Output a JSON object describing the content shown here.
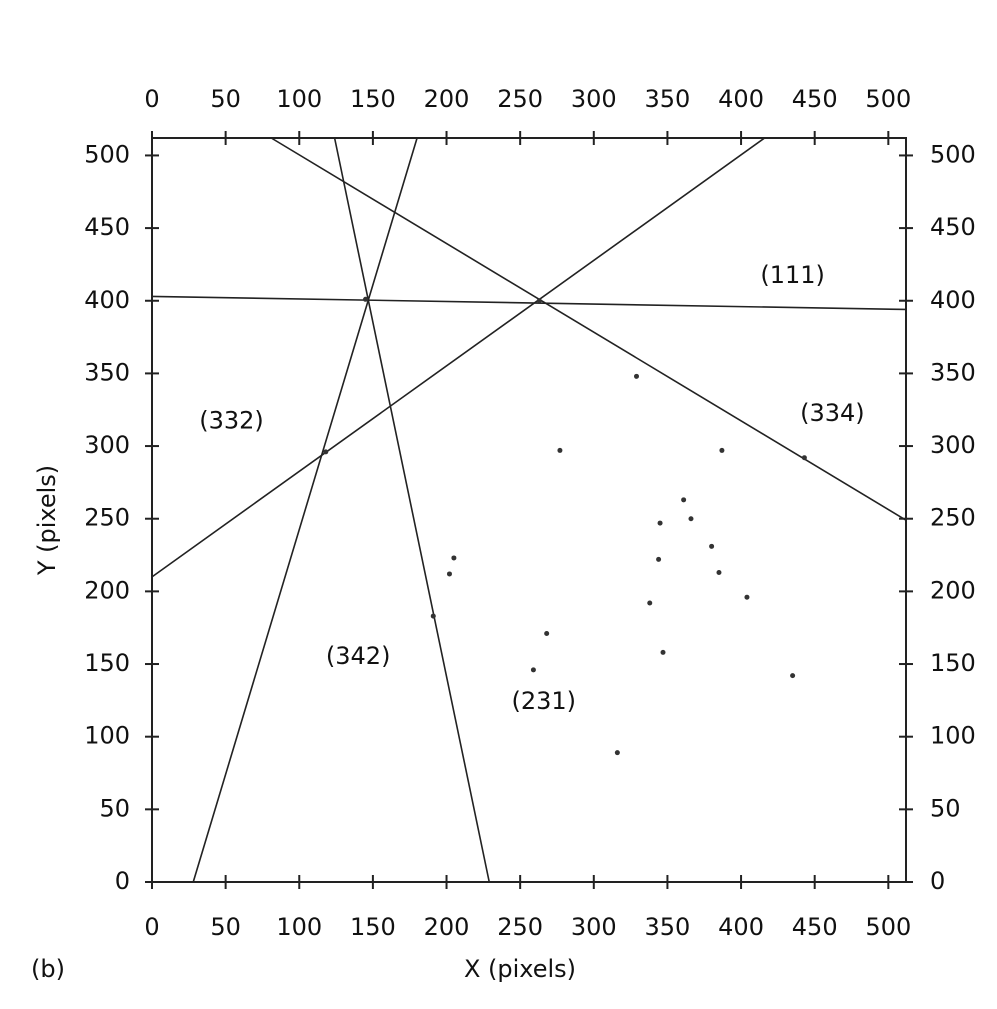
{
  "chart_data": {
    "type": "line",
    "xlabel": "X (pixels)",
    "ylabel": "Y (pixels)",
    "panel_label": "(b)",
    "xlim": [
      0,
      512
    ],
    "ylim": [
      0,
      512
    ],
    "xticks": [
      0,
      50,
      100,
      150,
      200,
      250,
      300,
      350,
      400,
      450,
      500
    ],
    "yticks": [
      0,
      50,
      100,
      150,
      200,
      250,
      300,
      350,
      400,
      450,
      500
    ],
    "x_axes": [
      "bottom",
      "top"
    ],
    "y_axes": [
      "left",
      "right"
    ],
    "series": [
      {
        "color": "#222222",
        "x": [
          0,
          512
        ],
        "values": [
          403,
          394
        ]
      },
      {
        "color": "#222222",
        "x": [
          81,
          512
        ],
        "values": [
          512,
          249
        ]
      },
      {
        "color": "#222222",
        "x": [
          0,
          416
        ],
        "values": [
          210,
          512
        ]
      },
      {
        "color": "#222222",
        "x": [
          124,
          229
        ],
        "values": [
          512,
          0
        ]
      },
      {
        "color": "#222222",
        "x": [
          28,
          180
        ],
        "values": [
          0,
          512
        ]
      }
    ],
    "points": {
      "color": "#333333",
      "x": [
        145,
        263,
        118,
        443,
        191,
        345,
        344,
        338,
        347,
        268,
        259,
        380,
        385,
        404,
        361,
        366,
        387,
        329,
        205,
        202,
        316,
        435,
        277
      ],
      "values": [
        401,
        400,
        296,
        292,
        183,
        247,
        222,
        192,
        158,
        171,
        146,
        231,
        213,
        196,
        263,
        250,
        297,
        348,
        223,
        212,
        89,
        142,
        297
      ]
    },
    "annotations": [
      {
        "text": "(111)",
        "x": 435,
        "y": 417
      },
      {
        "text": "(334)",
        "x": 462,
        "y": 322
      },
      {
        "text": "(332)",
        "x": 54,
        "y": 317
      },
      {
        "text": "(342)",
        "x": 140,
        "y": 155
      },
      {
        "text": "(231)",
        "x": 266,
        "y": 124
      }
    ]
  }
}
